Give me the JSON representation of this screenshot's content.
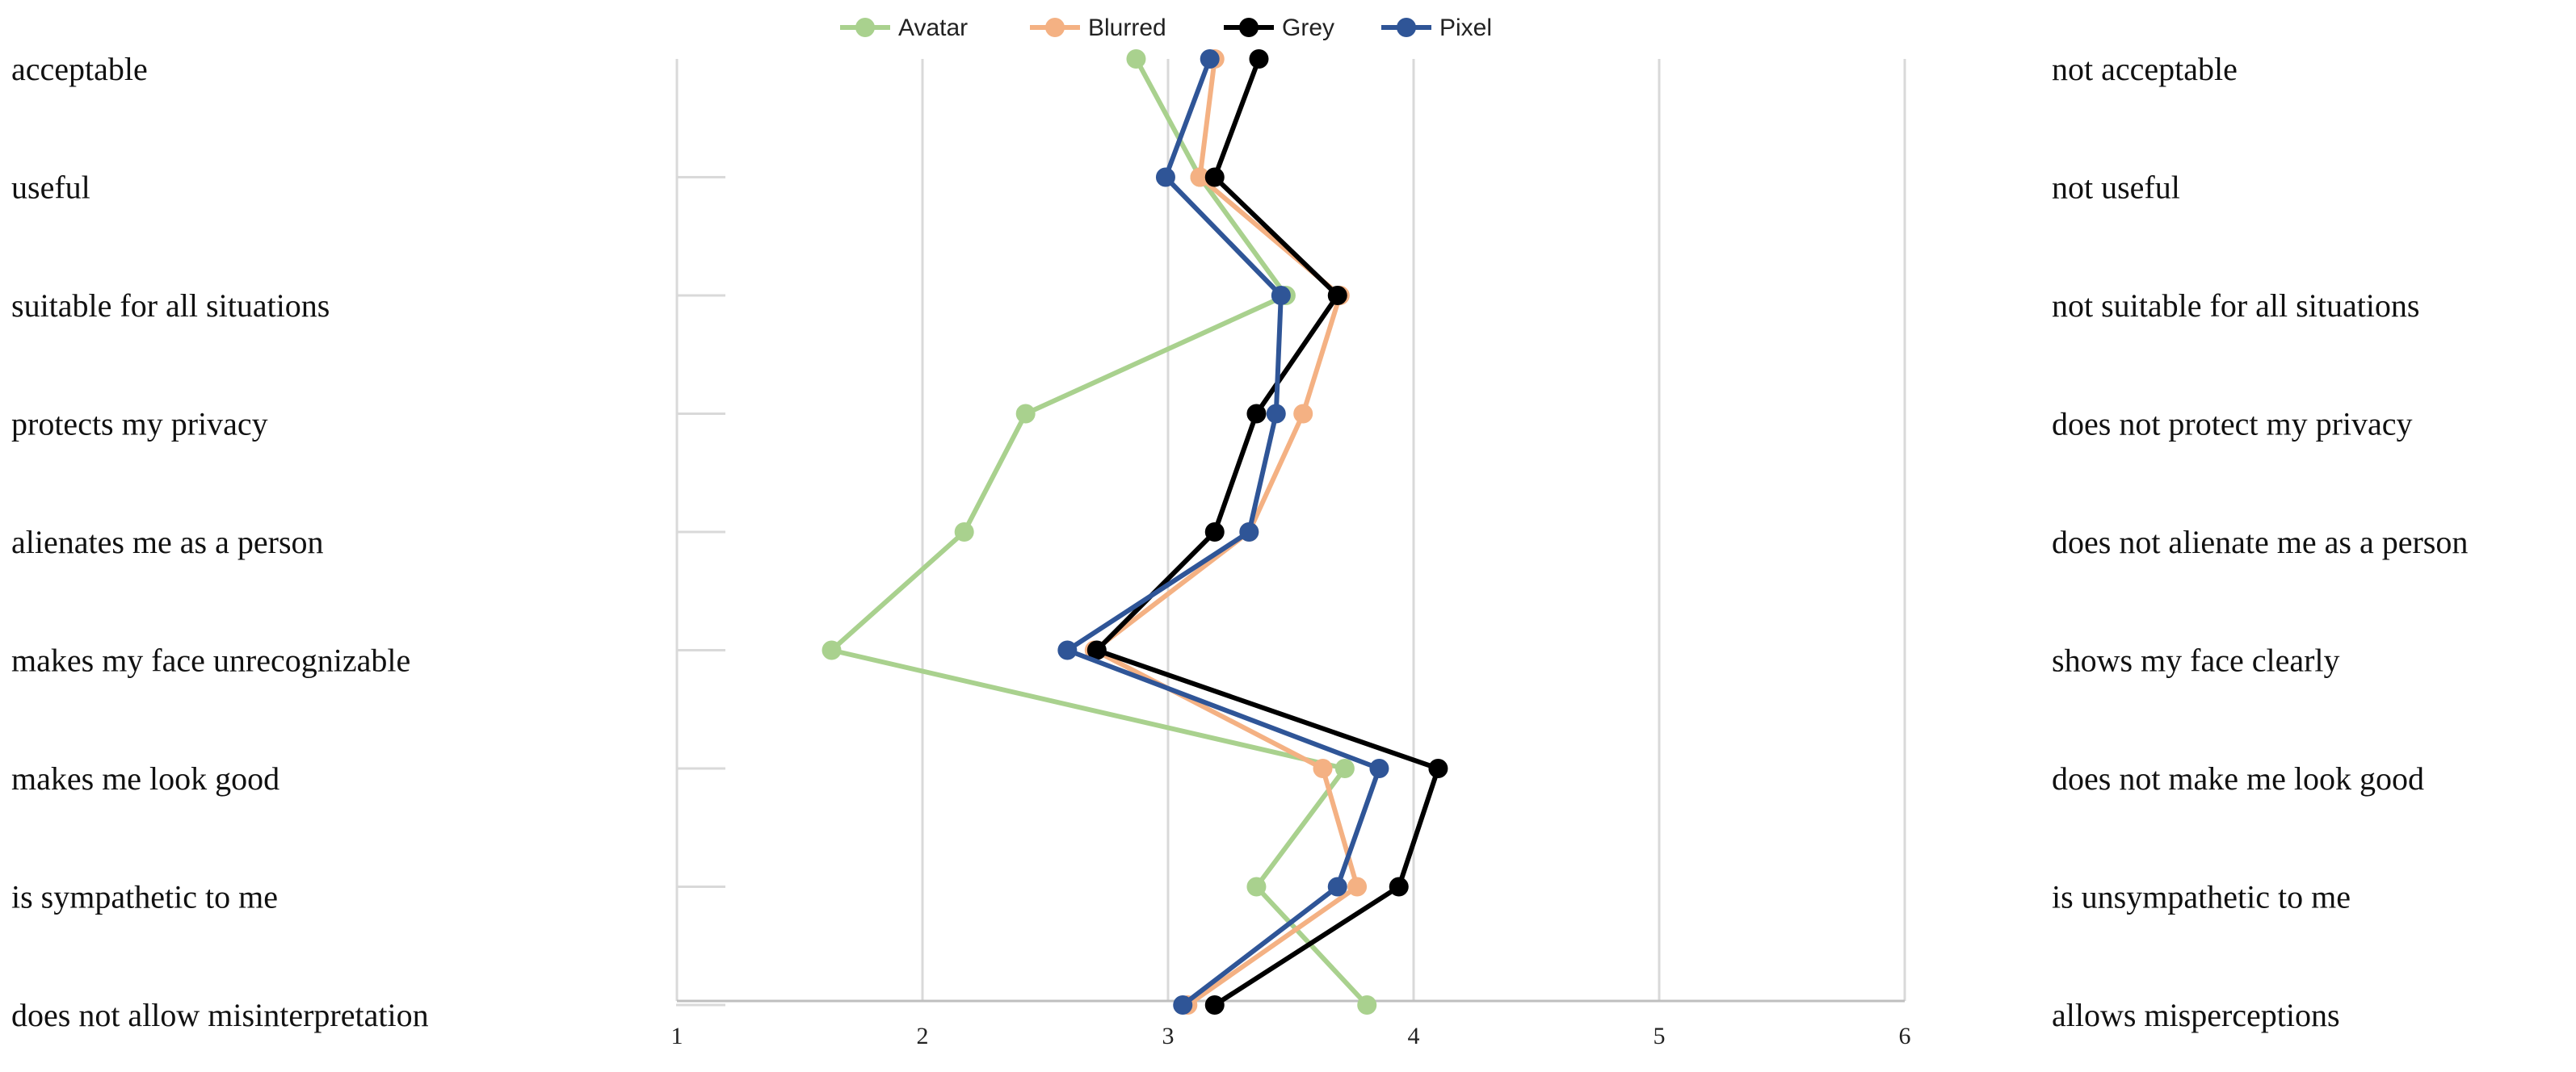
{
  "chart_data": {
    "type": "line",
    "orientation": "horizontal-profile",
    "xlim": [
      1,
      6
    ],
    "x_ticks": [
      "1",
      "2",
      "3",
      "4",
      "5",
      "6"
    ],
    "grid": true,
    "legend_position": "top",
    "left_labels": [
      "acceptable",
      "useful",
      "suitable for all situations",
      "protects my privacy",
      "alienates me as a person",
      "makes my face unrecognizable",
      "makes me look good",
      "is sympathetic to me",
      "does not allow misinterpretation"
    ],
    "right_labels": [
      "not acceptable",
      "not useful",
      "not suitable for all situations",
      "does not protect my privacy",
      "does not alienate me as a person",
      "shows my face clearly",
      "does not make me look good",
      "is unsympathetic to me",
      "allows misperceptions"
    ],
    "series": [
      {
        "name": "Avatar",
        "color": "#a9d18e",
        "values": [
          2.87,
          3.13,
          3.48,
          2.42,
          2.17,
          1.63,
          3.72,
          3.36,
          3.81
        ]
      },
      {
        "name": "Blurred",
        "color": "#f4b183",
        "values": [
          3.19,
          3.13,
          3.7,
          3.55,
          3.33,
          2.7,
          3.63,
          3.77,
          3.08
        ]
      },
      {
        "name": "Grey",
        "color": "#000000",
        "values": [
          3.37,
          3.19,
          3.69,
          3.36,
          3.19,
          2.71,
          4.1,
          3.94,
          3.19
        ]
      },
      {
        "name": "Pixel",
        "color": "#2f5597",
        "values": [
          3.17,
          2.99,
          3.46,
          3.44,
          3.33,
          2.59,
          3.86,
          3.69,
          3.06
        ]
      }
    ]
  }
}
